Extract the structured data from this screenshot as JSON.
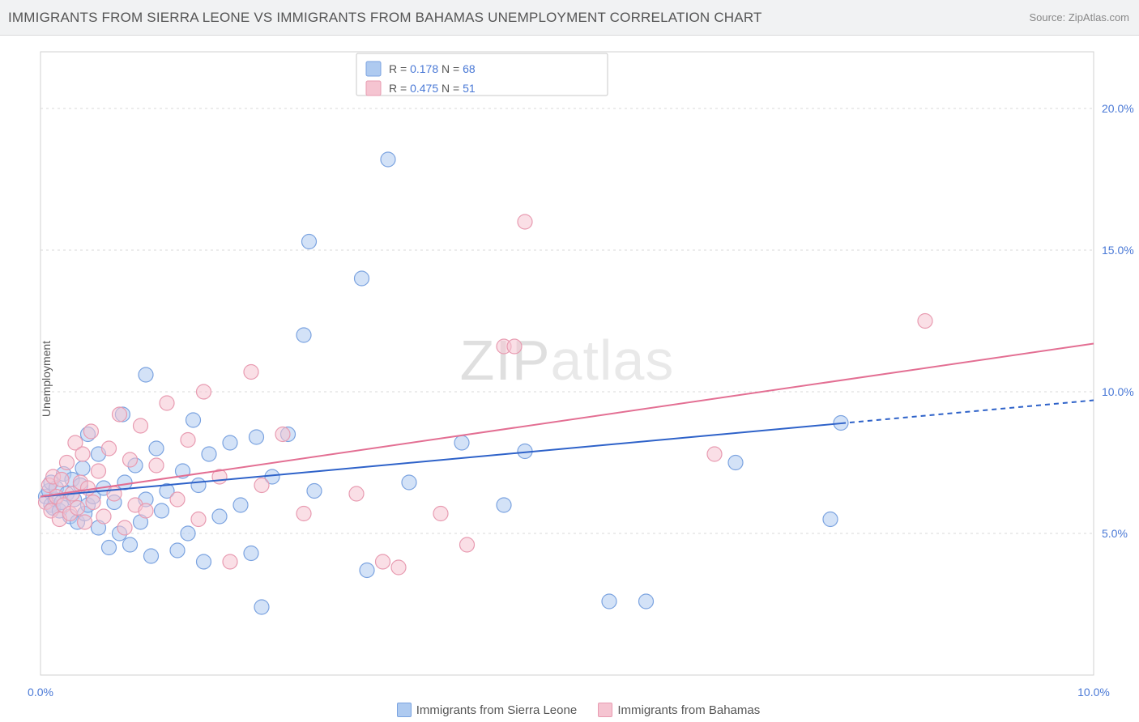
{
  "title": "IMMIGRANTS FROM SIERRA LEONE VS IMMIGRANTS FROM BAHAMAS UNEMPLOYMENT CORRELATION CHART",
  "source_label": "Source: ZipAtlas.com",
  "ylabel": "Unemployment",
  "watermark": "ZIPatlas",
  "header_bg": "#f1f2f3",
  "plot_bg": "#ffffff",
  "border_color": "#d0d0d0",
  "grid_color": "#d9d9d9",
  "text_color": "#555555",
  "value_color": "#4a79d6",
  "chart": {
    "type": "scatter",
    "xlim": [
      0,
      10
    ],
    "ylim": [
      0,
      22
    ],
    "ytick_positions": [
      5,
      10,
      15,
      20
    ],
    "ytick_labels": [
      "5.0%",
      "10.0%",
      "15.0%",
      "20.0%"
    ],
    "xtick_positions": [
      0,
      10
    ],
    "xtick_labels": [
      "0.0%",
      "10.0%"
    ],
    "marker_radius": 9,
    "marker_opacity": 0.55,
    "line_width": 2
  },
  "series": [
    {
      "name": "Immigrants from Sierra Leone",
      "color_stroke": "#7ba3e0",
      "color_fill": "#aecaf0",
      "line_color": "#2e62c9",
      "R": "0.178",
      "N": "68",
      "trend": {
        "y_at_x0": 6.3,
        "y_at_x10": 9.7,
        "solid_until_x": 7.6
      },
      "points": [
        [
          0.05,
          6.3
        ],
        [
          0.08,
          6.5
        ],
        [
          0.1,
          6.0
        ],
        [
          0.1,
          6.8
        ],
        [
          0.12,
          5.9
        ],
        [
          0.14,
          6.2
        ],
        [
          0.15,
          6.6
        ],
        [
          0.18,
          5.8
        ],
        [
          0.2,
          6.1
        ],
        [
          0.22,
          7.1
        ],
        [
          0.25,
          6.4
        ],
        [
          0.28,
          5.6
        ],
        [
          0.3,
          6.9
        ],
        [
          0.32,
          6.2
        ],
        [
          0.35,
          5.4
        ],
        [
          0.38,
          6.7
        ],
        [
          0.4,
          7.3
        ],
        [
          0.42,
          5.7
        ],
        [
          0.45,
          6.0
        ],
        [
          0.45,
          8.5
        ],
        [
          0.5,
          6.3
        ],
        [
          0.55,
          5.2
        ],
        [
          0.55,
          7.8
        ],
        [
          0.6,
          6.6
        ],
        [
          0.65,
          4.5
        ],
        [
          0.7,
          6.1
        ],
        [
          0.75,
          5.0
        ],
        [
          0.78,
          9.2
        ],
        [
          0.8,
          6.8
        ],
        [
          0.85,
          4.6
        ],
        [
          0.9,
          7.4
        ],
        [
          0.95,
          5.4
        ],
        [
          1.0,
          6.2
        ],
        [
          1.0,
          10.6
        ],
        [
          1.05,
          4.2
        ],
        [
          1.1,
          8.0
        ],
        [
          1.15,
          5.8
        ],
        [
          1.2,
          6.5
        ],
        [
          1.3,
          4.4
        ],
        [
          1.35,
          7.2
        ],
        [
          1.4,
          5.0
        ],
        [
          1.45,
          9.0
        ],
        [
          1.5,
          6.7
        ],
        [
          1.55,
          4.0
        ],
        [
          1.6,
          7.8
        ],
        [
          1.7,
          5.6
        ],
        [
          1.8,
          8.2
        ],
        [
          1.9,
          6.0
        ],
        [
          2.0,
          4.3
        ],
        [
          2.05,
          8.4
        ],
        [
          2.1,
          2.4
        ],
        [
          2.2,
          7.0
        ],
        [
          2.35,
          8.5
        ],
        [
          2.5,
          12.0
        ],
        [
          2.55,
          15.3
        ],
        [
          2.6,
          6.5
        ],
        [
          3.05,
          14.0
        ],
        [
          3.1,
          3.7
        ],
        [
          3.3,
          18.2
        ],
        [
          3.5,
          6.8
        ],
        [
          4.0,
          8.2
        ],
        [
          4.4,
          6.0
        ],
        [
          4.6,
          7.9
        ],
        [
          5.4,
          2.6
        ],
        [
          5.75,
          2.6
        ],
        [
          6.6,
          7.5
        ],
        [
          7.5,
          5.5
        ],
        [
          7.6,
          8.9
        ]
      ]
    },
    {
      "name": "Immigrants from Bahamas",
      "color_stroke": "#e89bb1",
      "color_fill": "#f5c4d1",
      "line_color": "#e36f93",
      "R": "0.475",
      "N": "51",
      "trend": {
        "y_at_x0": 6.3,
        "y_at_x10": 11.7,
        "solid_until_x": 10
      },
      "points": [
        [
          0.05,
          6.1
        ],
        [
          0.08,
          6.7
        ],
        [
          0.1,
          5.8
        ],
        [
          0.12,
          7.0
        ],
        [
          0.15,
          6.3
        ],
        [
          0.18,
          5.5
        ],
        [
          0.2,
          6.9
        ],
        [
          0.22,
          6.0
        ],
        [
          0.25,
          7.5
        ],
        [
          0.28,
          5.7
        ],
        [
          0.3,
          6.4
        ],
        [
          0.33,
          8.2
        ],
        [
          0.35,
          5.9
        ],
        [
          0.38,
          6.8
        ],
        [
          0.4,
          7.8
        ],
        [
          0.42,
          5.4
        ],
        [
          0.45,
          6.6
        ],
        [
          0.48,
          8.6
        ],
        [
          0.5,
          6.1
        ],
        [
          0.55,
          7.2
        ],
        [
          0.6,
          5.6
        ],
        [
          0.65,
          8.0
        ],
        [
          0.7,
          6.4
        ],
        [
          0.75,
          9.2
        ],
        [
          0.8,
          5.2
        ],
        [
          0.85,
          7.6
        ],
        [
          0.9,
          6.0
        ],
        [
          0.95,
          8.8
        ],
        [
          1.0,
          5.8
        ],
        [
          1.1,
          7.4
        ],
        [
          1.2,
          9.6
        ],
        [
          1.3,
          6.2
        ],
        [
          1.4,
          8.3
        ],
        [
          1.5,
          5.5
        ],
        [
          1.55,
          10.0
        ],
        [
          1.7,
          7.0
        ],
        [
          1.8,
          4.0
        ],
        [
          2.0,
          10.7
        ],
        [
          2.1,
          6.7
        ],
        [
          2.3,
          8.5
        ],
        [
          2.5,
          5.7
        ],
        [
          3.0,
          6.4
        ],
        [
          3.25,
          4.0
        ],
        [
          3.4,
          3.8
        ],
        [
          3.8,
          5.7
        ],
        [
          4.05,
          4.6
        ],
        [
          4.4,
          11.6
        ],
        [
          4.5,
          11.6
        ],
        [
          4.6,
          16.0
        ],
        [
          6.4,
          7.8
        ],
        [
          8.4,
          12.5
        ]
      ]
    }
  ],
  "bottom_legend": [
    {
      "label": "Immigrants from Sierra Leone",
      "fill": "#aecaf0",
      "stroke": "#7ba3e0"
    },
    {
      "label": "Immigrants from Bahamas",
      "fill": "#f5c4d1",
      "stroke": "#e89bb1"
    }
  ]
}
